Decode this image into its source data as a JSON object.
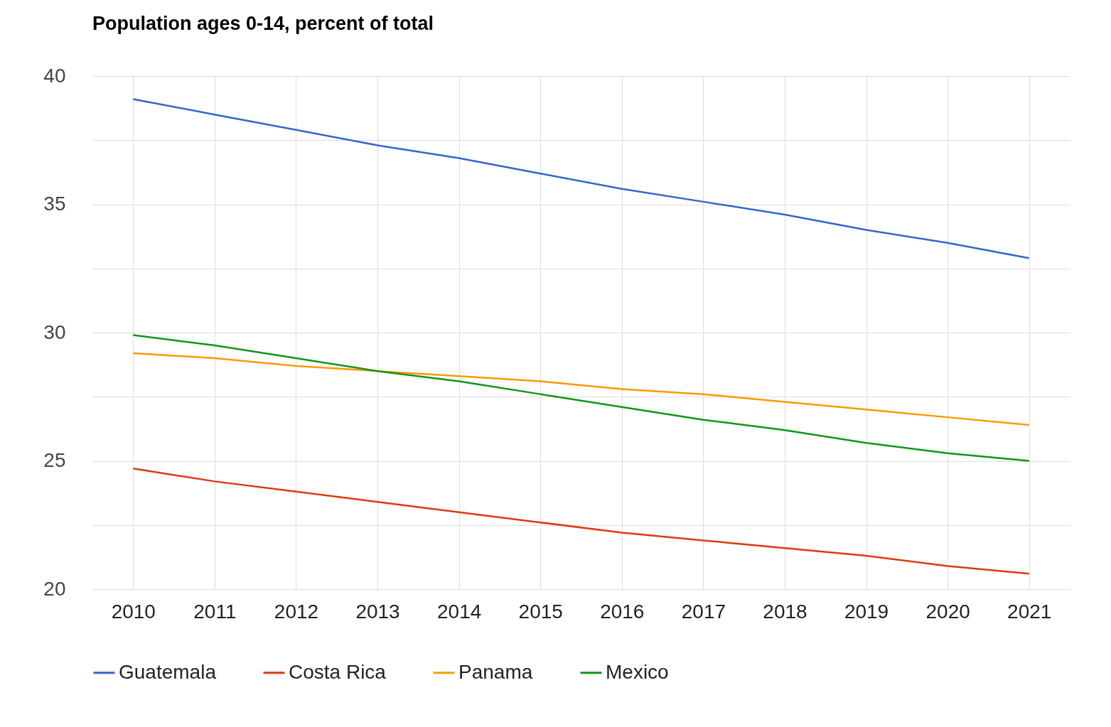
{
  "chart_data": {
    "type": "line",
    "title": "Population ages 0-14, percent of total",
    "categories": [
      "2010",
      "2011",
      "2012",
      "2013",
      "2014",
      "2015",
      "2016",
      "2017",
      "2018",
      "2019",
      "2020",
      "2021"
    ],
    "series": [
      {
        "name": "Guatemala",
        "color": "#3366cc",
        "values": [
          39.1,
          38.5,
          37.9,
          37.3,
          36.8,
          36.2,
          35.6,
          35.1,
          34.6,
          34.0,
          33.5,
          32.9
        ]
      },
      {
        "name": "Costa Rica",
        "color": "#dc3912",
        "values": [
          24.7,
          24.2,
          23.8,
          23.4,
          23.0,
          22.6,
          22.2,
          21.9,
          21.6,
          21.3,
          20.9,
          20.6
        ]
      },
      {
        "name": "Panama",
        "color": "#ff9900",
        "values": [
          29.2,
          29.0,
          28.7,
          28.5,
          28.3,
          28.1,
          27.8,
          27.6,
          27.3,
          27.0,
          26.7,
          26.4
        ]
      },
      {
        "name": "Mexico",
        "color": "#109618",
        "values": [
          29.9,
          29.5,
          29.0,
          28.5,
          28.1,
          27.6,
          27.1,
          26.6,
          26.2,
          25.7,
          25.3,
          25.0
        ]
      }
    ],
    "ylim": [
      20,
      40
    ],
    "yticks": [
      20,
      {
        "value": 22.5,
        "label": null
      },
      25,
      {
        "value": 27.5,
        "label": null
      },
      30,
      {
        "value": 32.5,
        "label": null
      },
      35,
      {
        "value": 37.5,
        "label": null
      },
      40
    ],
    "grid": true,
    "legend": "bottom",
    "marker": "none",
    "line_style": "solid"
  }
}
